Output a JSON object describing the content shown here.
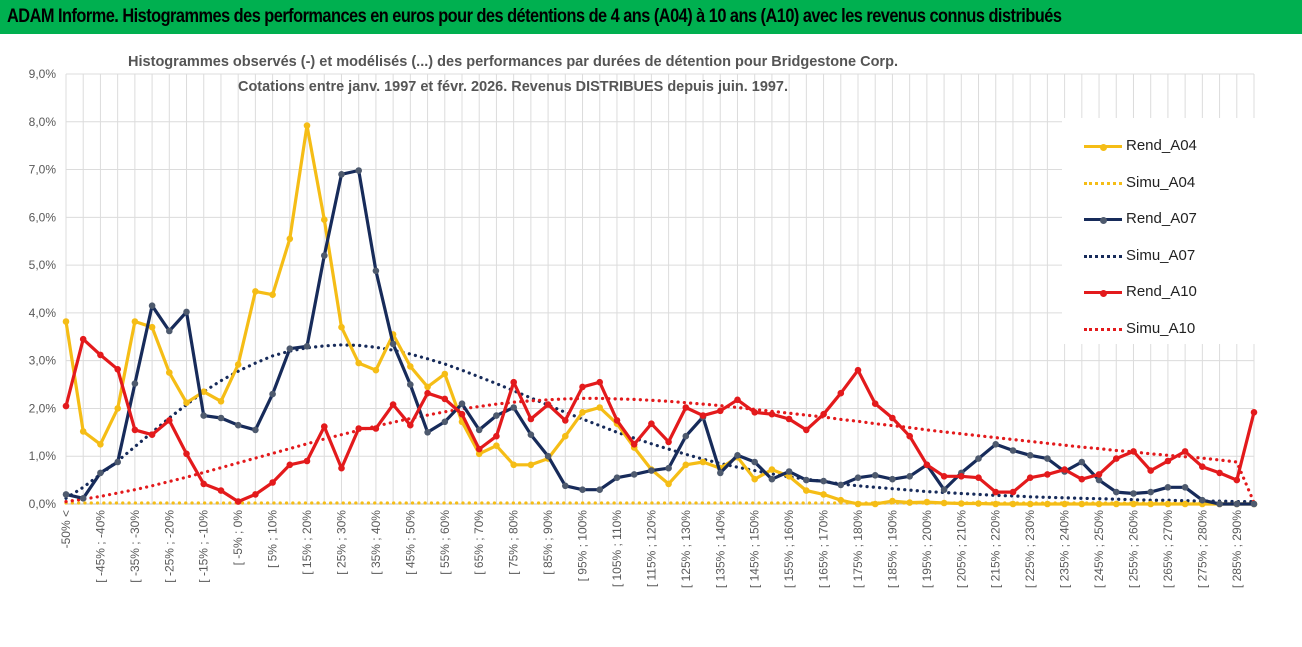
{
  "header": {
    "title": "ADAM Informe. Histogrammes des performances en euros pour des détentions de 4 ans (A04) à 10 ans (A10) avec les revenus connus distribués"
  },
  "colors": {
    "header_bg": "#00b050",
    "A04": "#f5bd16",
    "A07": "#172b5a",
    "A10": "#e31a1c",
    "marker_A07": "#4e5a6e"
  },
  "chart_data": {
    "type": "line",
    "title": "Histogrammes observés (-) et modélisés (...) des performances par durées de détention pour Bridgestone Corp.",
    "subtitle": "Cotations entre janv. 1997 et févr. 2026. Revenus DISTRIBUES depuis juin. 1997.",
    "ylim": [
      0,
      9
    ],
    "yticks": [
      "0,0%",
      "1,0%",
      "2,0%",
      "3,0%",
      "4,0%",
      "5,0%",
      "6,0%",
      "7,0%",
      "8,0%",
      "9,0%"
    ],
    "xtick_labels": [
      "-50% <",
      "[ -45% ; -40%",
      "[ -35% ; -30%",
      "[ -25% ; -20%",
      "[ -15% ; -10%",
      "[ -5% ; 0%",
      "[ 5% ; 10%",
      "[ 15% ; 20%",
      "[ 25% ; 30%",
      "[ 35% ; 40%",
      "[ 45% ; 50%",
      "[ 55% ; 60%",
      "[ 65% ; 70%",
      "[ 75% ; 80%",
      "[ 85% ; 90%",
      "[ 95% ; 100%",
      "[ 105% ; 110%",
      "[ 115% ; 120%",
      "[ 125% ; 130%",
      "[ 135% ; 140%",
      "[ 145% ; 150%",
      "[ 155% ; 160%",
      "[ 165% ; 170%",
      "[ 175% ; 180%",
      "[ 185% ; 190%",
      "[ 195% ; 200%",
      "[ 205% ; 210%",
      "[ 215% ; 220%",
      "[ 225% ; 230%",
      "[ 235% ; 240%",
      "[ 245% ; 250%",
      "[ 255% ; 260%",
      "[ 265% ; 270%",
      "[ 275% ; 280%",
      "[ 285% ; 290%"
    ],
    "categories_count": 70,
    "legend": [
      "Rend_A04",
      "Simu_A04",
      "Rend_A07",
      "Simu_A07",
      "Rend_A10",
      "Simu_A10"
    ],
    "series": [
      {
        "name": "Rend_A04",
        "style": "solid",
        "values": [
          3.82,
          1.52,
          1.25,
          2.0,
          3.82,
          3.7,
          2.75,
          2.12,
          2.35,
          2.15,
          2.92,
          4.45,
          4.38,
          5.55,
          7.92,
          5.95,
          3.7,
          2.95,
          2.8,
          3.55,
          2.88,
          2.45,
          2.72,
          1.72,
          1.05,
          1.22,
          0.82,
          0.82,
          0.95,
          1.42,
          1.92,
          2.02,
          1.68,
          1.18,
          0.72,
          0.42,
          0.82,
          0.88,
          0.75,
          0.98,
          0.52,
          0.72,
          0.58,
          0.28,
          0.2,
          0.08,
          0.0,
          0.0,
          0.06,
          0.03,
          0.04,
          0.02,
          0.01,
          0.01,
          0.0,
          0.0,
          0.0,
          0.0,
          0.0,
          0.0,
          0.0,
          0.0,
          0.0,
          0.0,
          0.0,
          0.0,
          0.0,
          0.0,
          0.0,
          0.0
        ]
      },
      {
        "name": "Simu_A04",
        "style": "dotted",
        "values": [
          0.02,
          0.02,
          0.02,
          0.02,
          0.02,
          0.02,
          0.02,
          0.02,
          0.02,
          0.02,
          0.02,
          0.02,
          0.02,
          0.02,
          0.02,
          0.02,
          0.02,
          0.02,
          0.02,
          0.02,
          0.02,
          0.02,
          0.02,
          0.02,
          0.02,
          0.02,
          0.02,
          0.02,
          0.02,
          0.02,
          0.02,
          0.02,
          0.02,
          0.02,
          0.02,
          0.02,
          0.02,
          0.02,
          0.02,
          0.02,
          0.02,
          0.02,
          0.02,
          0.02,
          0.02,
          0.02,
          0.02,
          0.02,
          0.02,
          0.02,
          0.02,
          0.02,
          0.02,
          0.02,
          0.02,
          0.02,
          0.02,
          0.02,
          0.02,
          0.02,
          0.02,
          0.02,
          0.02,
          0.02,
          0.02,
          0.02,
          0.02,
          0.02,
          0.02,
          0.02
        ]
      },
      {
        "name": "Rend_A07",
        "style": "solid",
        "values": [
          0.2,
          0.12,
          0.65,
          0.88,
          2.52,
          4.15,
          3.62,
          4.02,
          1.85,
          1.8,
          1.65,
          1.55,
          2.3,
          3.25,
          3.3,
          5.2,
          6.9,
          6.98,
          4.88,
          3.35,
          2.5,
          1.5,
          1.72,
          2.1,
          1.55,
          1.85,
          2.02,
          1.45,
          1.0,
          0.38,
          0.3,
          0.3,
          0.55,
          0.62,
          0.7,
          0.75,
          1.42,
          1.82,
          0.65,
          1.02,
          0.88,
          0.52,
          0.68,
          0.5,
          0.48,
          0.4,
          0.55,
          0.6,
          0.52,
          0.58,
          0.82,
          0.3,
          0.65,
          0.95,
          1.25,
          1.12,
          1.02,
          0.95,
          0.68,
          0.88,
          0.5,
          0.25,
          0.22,
          0.25,
          0.35,
          0.35,
          0.08,
          0.0,
          0.0,
          0.0
        ]
      },
      {
        "name": "Simu_A07",
        "style": "dotted",
        "values": [
          0.12,
          0.35,
          0.62,
          0.9,
          1.2,
          1.5,
          1.8,
          2.08,
          2.35,
          2.58,
          2.78,
          2.95,
          3.1,
          3.2,
          3.27,
          3.31,
          3.33,
          3.32,
          3.28,
          3.22,
          3.14,
          3.04,
          2.93,
          2.8,
          2.66,
          2.52,
          2.37,
          2.22,
          2.07,
          1.92,
          1.78,
          1.64,
          1.5,
          1.38,
          1.26,
          1.15,
          1.04,
          0.94,
          0.85,
          0.77,
          0.7,
          0.63,
          0.57,
          0.52,
          0.47,
          0.42,
          0.38,
          0.35,
          0.32,
          0.29,
          0.26,
          0.24,
          0.22,
          0.2,
          0.18,
          0.17,
          0.15,
          0.14,
          0.13,
          0.12,
          0.11,
          0.1,
          0.09,
          0.08,
          0.08,
          0.07,
          0.06,
          0.06,
          0.05,
          0.05
        ]
      },
      {
        "name": "Rend_A10",
        "style": "solid",
        "values": [
          2.05,
          3.45,
          3.12,
          2.82,
          1.55,
          1.45,
          1.75,
          1.05,
          0.42,
          0.28,
          0.05,
          0.2,
          0.45,
          0.82,
          0.9,
          1.62,
          0.75,
          1.58,
          1.58,
          2.08,
          1.65,
          2.32,
          2.2,
          1.88,
          1.15,
          1.42,
          2.55,
          1.78,
          2.08,
          1.75,
          2.45,
          2.55,
          1.75,
          1.25,
          1.68,
          1.3,
          2.02,
          1.85,
          1.95,
          2.18,
          1.92,
          1.88,
          1.78,
          1.55,
          1.88,
          2.32,
          2.8,
          2.1,
          1.8,
          1.42,
          0.82,
          0.58,
          0.58,
          0.55,
          0.25,
          0.25,
          0.55,
          0.62,
          0.72,
          0.52,
          0.62,
          0.95,
          1.1,
          0.7,
          0.9,
          1.1,
          0.78,
          0.65,
          0.5,
          1.92
        ]
      },
      {
        "name": "Simu_A10",
        "style": "dotted",
        "values": [
          0.05,
          0.1,
          0.16,
          0.23,
          0.3,
          0.38,
          0.47,
          0.56,
          0.66,
          0.76,
          0.86,
          0.96,
          1.06,
          1.16,
          1.26,
          1.36,
          1.45,
          1.54,
          1.63,
          1.71,
          1.79,
          1.86,
          1.93,
          1.99,
          2.04,
          2.09,
          2.13,
          2.16,
          2.18,
          2.2,
          2.21,
          2.21,
          2.2,
          2.19,
          2.17,
          2.15,
          2.12,
          2.09,
          2.06,
          2.02,
          1.98,
          1.94,
          1.9,
          1.86,
          1.82,
          1.77,
          1.73,
          1.68,
          1.64,
          1.6,
          1.55,
          1.51,
          1.47,
          1.43,
          1.39,
          1.35,
          1.31,
          1.27,
          1.23,
          1.19,
          1.16,
          1.12,
          1.09,
          1.05,
          1.02,
          0.99,
          0.96,
          0.92,
          0.88,
          0.03
        ]
      }
    ]
  }
}
